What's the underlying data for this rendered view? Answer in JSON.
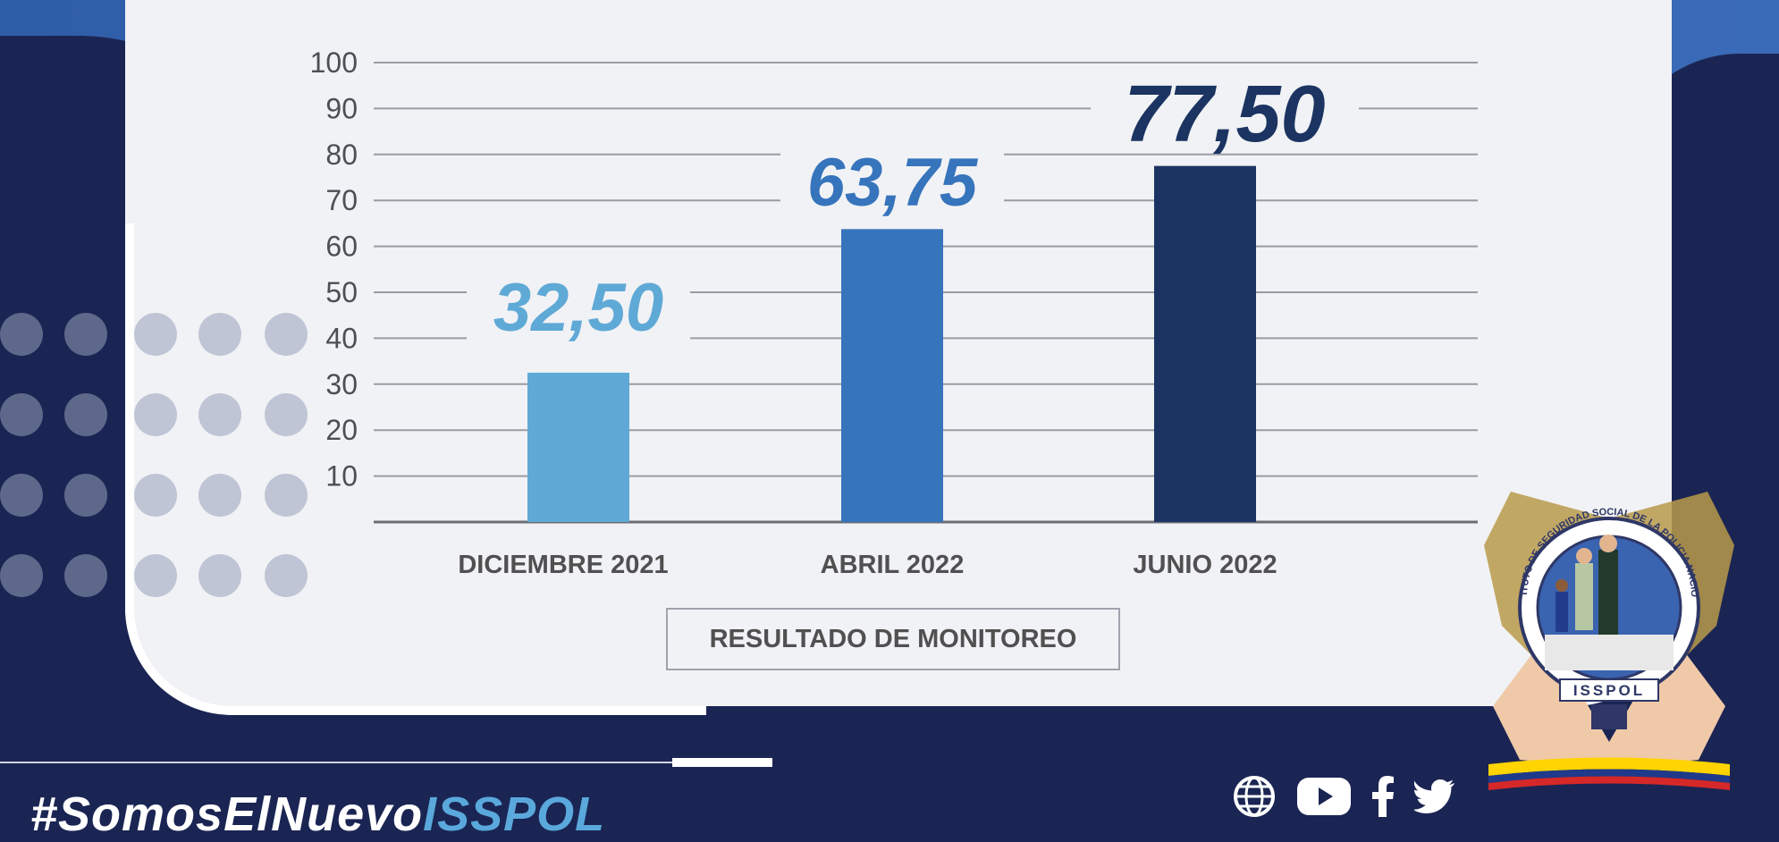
{
  "header_fragment": "ISSPOL",
  "chart_data": {
    "type": "bar",
    "categories": [
      "DICIEMBRE 2021",
      "ABRIL 2022",
      "JUNIO 2022"
    ],
    "values": [
      32.5,
      63.75,
      77.5
    ],
    "value_labels": [
      "32,50",
      "63,75",
      "77,50"
    ],
    "bar_colors": [
      "#5fa9d6",
      "#3674bc",
      "#1b3461"
    ],
    "label_colors": [
      "#5fa9d6",
      "#3674bc",
      "#1b3461"
    ],
    "y_ticks": [
      10,
      20,
      30,
      40,
      50,
      60,
      70,
      80,
      90,
      100
    ],
    "ylim": [
      0,
      100
    ],
    "grid": true,
    "title": "",
    "xlabel": "RESULTADO DE MONITOREO",
    "ylabel": ""
  },
  "footer": {
    "hashtag_prefix": "#SomosElNuevo",
    "hashtag_accent": "ISSPOL",
    "social_icons": [
      "globe-icon",
      "youtube-icon",
      "facebook-icon",
      "twitter-icon"
    ]
  },
  "emblem": {
    "ring_text": "INSTITUTO DE SEGURIDAD SOCIAL DE LA POLICIA NACIONAL",
    "banner_text": "ISSPOL"
  },
  "colors": {
    "background": "#1b2553",
    "card": "#f1f2f5",
    "accent_light": "#5aa8dc"
  }
}
